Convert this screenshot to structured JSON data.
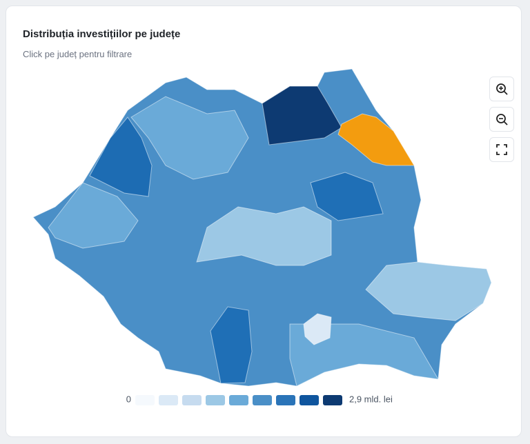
{
  "title": "Distribuția investițiilor pe județe",
  "subtitle": "Click pe județ pentru filtrare",
  "legend": {
    "min_label": "0",
    "max_label": "2,9 mld. lei",
    "colors": [
      "#f5f9fd",
      "#dbe9f6",
      "#c6dbef",
      "#9cc8e5",
      "#6aaad8",
      "#4a8fc7",
      "#2a74b8",
      "#0f559e",
      "#0d3a72"
    ]
  }
}
